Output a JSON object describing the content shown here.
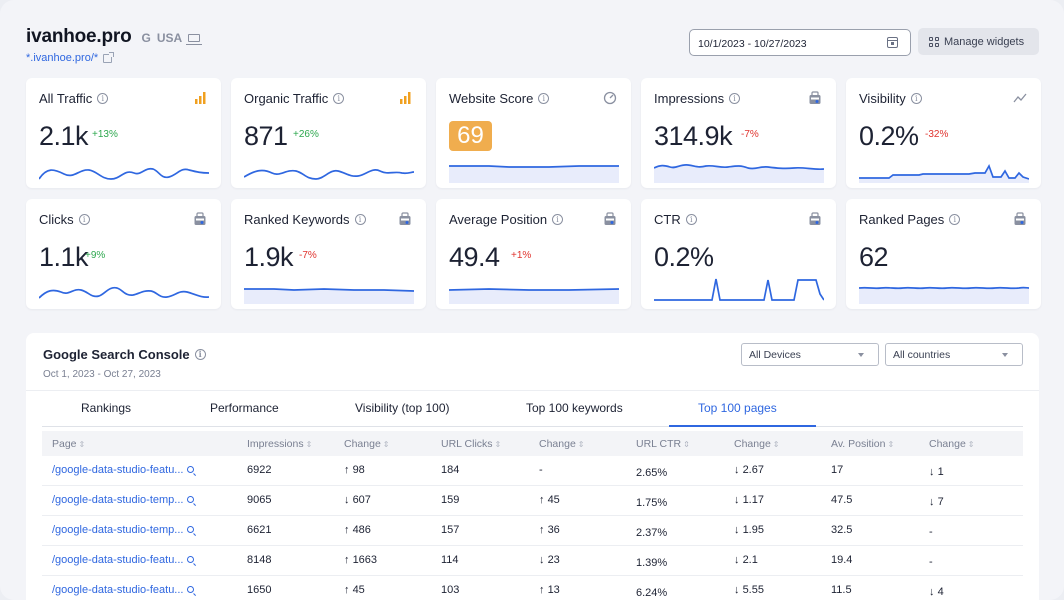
{
  "header": {
    "site_name": "ivanhoe.pro",
    "engine": "G",
    "country": "USA",
    "url": "*.ivanhoe.pro/*",
    "date_range": "10/1/2023 - 10/27/2023",
    "manage_label": "Manage widgets"
  },
  "cards": [
    {
      "title": "All Traffic",
      "value": "2.1k",
      "change": "+13%",
      "direction": "up",
      "icon": "bar-chart-icon"
    },
    {
      "title": "Organic Traffic",
      "value": "871",
      "change": "+26%",
      "direction": "up",
      "icon": "bar-chart-icon"
    },
    {
      "title": "Website Score",
      "value": "69",
      "change": "",
      "direction": "",
      "icon": "gauge-icon"
    },
    {
      "title": "Impressions",
      "value": "314.9k",
      "change": "-7%",
      "direction": "down",
      "icon": "search-console-icon"
    },
    {
      "title": "Visibility",
      "value": "0.2%",
      "change": "-32%",
      "direction": "down",
      "icon": "trend-icon"
    },
    {
      "title": "Clicks",
      "value": "1.1k",
      "change": "+9%",
      "direction": "up",
      "icon": "search-console-icon"
    },
    {
      "title": "Ranked Keywords",
      "value": "1.9k",
      "change": "-7%",
      "direction": "down",
      "icon": "search-console-icon"
    },
    {
      "title": "Average Position",
      "value": "49.4",
      "change": "+1%",
      "direction": "down",
      "icon": "search-console-icon"
    },
    {
      "title": "CTR",
      "value": "0.2%",
      "change": "",
      "direction": "",
      "icon": "search-console-icon"
    },
    {
      "title": "Ranked Pages",
      "value": "62",
      "change": "",
      "direction": "",
      "icon": "search-console-icon"
    }
  ],
  "gsc": {
    "title": "Google Search Console",
    "subtitle": "Oct 1, 2023 - Oct 27, 2023",
    "device_select": "All Devices",
    "country_select": "All countries",
    "tabs": [
      "Rankings",
      "Performance",
      "Visibility (top 100)",
      "Top 100 keywords",
      "Top 100 pages"
    ],
    "active_tab": "Top 100 pages",
    "columns": [
      "Page",
      "Impressions",
      "Change",
      "URL Clicks",
      "Change",
      "URL CTR",
      "Change",
      "Av. Position",
      "Change"
    ],
    "rows": [
      {
        "page": "/google-data-studio-featu...",
        "impressions": "6922",
        "imp_change": "98",
        "imp_dir": "up",
        "clicks": "184",
        "clk_change": "-",
        "clk_dir": "",
        "ctr": "2.65%",
        "ctr_change": "2.67",
        "ctr_dir": "down",
        "position": "17",
        "pos_change": "1",
        "pos_dir": "down"
      },
      {
        "page": "/google-data-studio-temp...",
        "impressions": "9065",
        "imp_change": "607",
        "imp_dir": "down",
        "clicks": "159",
        "clk_change": "45",
        "clk_dir": "up",
        "ctr": "1.75%",
        "ctr_change": "1.17",
        "ctr_dir": "down",
        "position": "47.5",
        "pos_change": "7",
        "pos_dir": "down"
      },
      {
        "page": "/google-data-studio-temp...",
        "impressions": "6621",
        "imp_change": "486",
        "imp_dir": "up",
        "clicks": "157",
        "clk_change": "36",
        "clk_dir": "up",
        "ctr": "2.37%",
        "ctr_change": "1.95",
        "ctr_dir": "down",
        "position": "32.5",
        "pos_change": "-",
        "pos_dir": ""
      },
      {
        "page": "/google-data-studio-featu...",
        "impressions": "8148",
        "imp_change": "1663",
        "imp_dir": "up",
        "clicks": "114",
        "clk_change": "23",
        "clk_dir": "down",
        "ctr": "1.39%",
        "ctr_change": "2.1",
        "ctr_dir": "down",
        "position": "19.4",
        "pos_change": "-",
        "pos_dir": ""
      },
      {
        "page": "/google-data-studio-featu...",
        "impressions": "1650",
        "imp_change": "45",
        "imp_dir": "up",
        "clicks": "103",
        "clk_change": "13",
        "clk_dir": "up",
        "ctr": "6.24%",
        "ctr_change": "5.55",
        "ctr_dir": "down",
        "position": "11.5",
        "pos_change": "4",
        "pos_dir": "down"
      }
    ]
  },
  "colors": {
    "accent": "#2f67e0",
    "up": "#2ea84f",
    "down": "#e0332e",
    "score": "#f0ad4e",
    "chart_icon": "#f0a020"
  }
}
